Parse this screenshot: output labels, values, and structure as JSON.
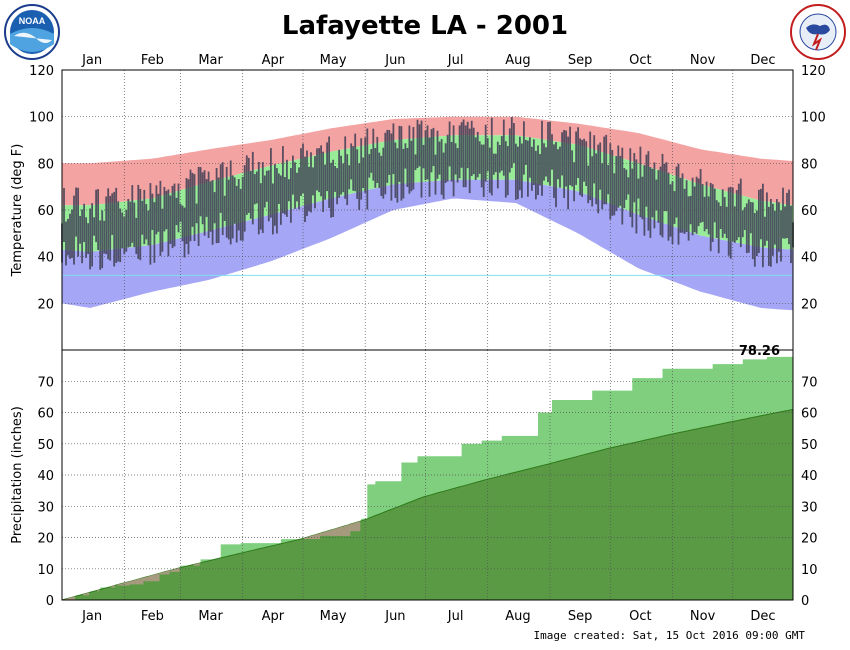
{
  "page": {
    "title": "Lafayette LA - 2001",
    "title_color": "#118811",
    "footer": "Image created: Sat, 15 Oct 2016 09:00 GMT",
    "left_logo_text": "NOAA",
    "right_logo_text": "NATIONAL WEATHER SERVICE"
  },
  "colors": {
    "record_high_band": "#f4a3a3",
    "normal_band": "#98ec98",
    "record_low_band": "#a6a6f6",
    "daily_bar": "#3e3e55",
    "freezing_line": "#7fe0f0",
    "actual_precip": "#7fcf7f",
    "normal_precip": "#5a9a45",
    "precip_below_normal": "#a89a80"
  },
  "chart_data": [
    {
      "type": "area",
      "name": "temperature",
      "months": [
        "Jan",
        "Feb",
        "Mar",
        "Apr",
        "May",
        "Jun",
        "Jul",
        "Aug",
        "Sep",
        "Oct",
        "Nov",
        "Dec"
      ],
      "ylabel": "Temperature (deg F)",
      "ylim": [
        0,
        120
      ],
      "yticks": [
        20,
        40,
        60,
        80,
        100,
        120
      ],
      "grid": true,
      "freezing_line": 32,
      "x_day": [
        1,
        15,
        46,
        74,
        105,
        135,
        166,
        196,
        227,
        258,
        288,
        319,
        349,
        365
      ],
      "record_high": [
        80,
        80,
        82,
        86,
        90,
        95,
        99,
        100,
        100,
        97,
        93,
        86,
        82,
        81
      ],
      "normal_high": [
        62,
        62,
        65,
        72,
        79,
        85,
        90,
        92,
        92,
        88,
        80,
        71,
        64,
        62
      ],
      "normal_low": [
        43,
        42,
        45,
        51,
        58,
        65,
        71,
        73,
        73,
        68,
        58,
        49,
        44,
        43
      ],
      "record_low": [
        20,
        18,
        25,
        30,
        38,
        48,
        60,
        65,
        63,
        50,
        35,
        25,
        18,
        17
      ]
    },
    {
      "type": "area",
      "name": "precipitation",
      "months": [
        "Jan",
        "Feb",
        "Mar",
        "Apr",
        "May",
        "Jun",
        "Jul",
        "Aug",
        "Sep",
        "Oct",
        "Nov",
        "Dec"
      ],
      "ylabel": "Precipitation (inches)",
      "ylim": [
        0,
        80
      ],
      "yticks": [
        0,
        10,
        20,
        30,
        40,
        50,
        60,
        70
      ],
      "grid": true,
      "total_label": "78.26",
      "x_day": [
        1,
        31,
        59,
        90,
        120,
        151,
        181,
        212,
        243,
        273,
        304,
        334,
        365
      ],
      "normal_cumulative": [
        0,
        5.3,
        10.2,
        15.0,
        19.5,
        25.5,
        33.0,
        38.5,
        43.5,
        48.5,
        53.0,
        57.0,
        61.0
      ],
      "actual_steps": [
        [
          1,
          0
        ],
        [
          8,
          1.5
        ],
        [
          15,
          2.8
        ],
        [
          20,
          4.0
        ],
        [
          28,
          4.6
        ],
        [
          35,
          5.0
        ],
        [
          42,
          6.0
        ],
        [
          50,
          8.2
        ],
        [
          55,
          9.0
        ],
        [
          60,
          11.0
        ],
        [
          70,
          13.0
        ],
        [
          80,
          17.8
        ],
        [
          90,
          18.2
        ],
        [
          110,
          19.5
        ],
        [
          130,
          20.5
        ],
        [
          145,
          22.0
        ],
        [
          150,
          26.0
        ],
        [
          153,
          37.0
        ],
        [
          157,
          38.0
        ],
        [
          170,
          44.0
        ],
        [
          178,
          46.0
        ],
        [
          200,
          50.0
        ],
        [
          210,
          51.0
        ],
        [
          220,
          52.5
        ],
        [
          238,
          60.0
        ],
        [
          245,
          64.0
        ],
        [
          265,
          67.0
        ],
        [
          285,
          71.0
        ],
        [
          300,
          74.0
        ],
        [
          325,
          75.5
        ],
        [
          340,
          77.0
        ],
        [
          352,
          77.8
        ],
        [
          365,
          78.26
        ]
      ]
    }
  ]
}
